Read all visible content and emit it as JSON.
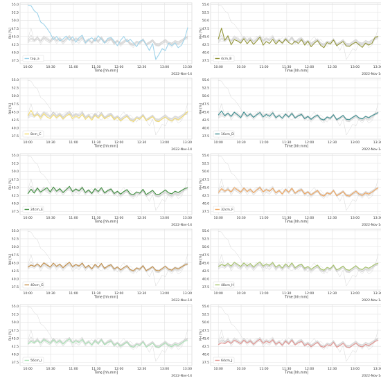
{
  "chart_data": [
    {
      "type": "line",
      "legend": "top_a",
      "color": "#9fd3ea",
      "x_label": "Time [hh:mm]",
      "y_label": "RH [%]",
      "date_label": "2022-Nov-14",
      "ylim": [
        36.5,
        55.5
      ],
      "yticks": [
        "37.5",
        "40.0",
        "42.5",
        "45.0",
        "47.5",
        "50.0",
        "52.5",
        "55.0"
      ],
      "xticks": [
        "10:00",
        "10:30",
        "11:00",
        "11:30",
        "12:00",
        "12:30",
        "13:00",
        "13:30"
      ],
      "x_range_hours": [
        9.83,
        13.6
      ],
      "legend_position": "lower-left",
      "grid": true,
      "series": [
        {
          "name": "top_a",
          "values": [
            54.8,
            54.6,
            53.0,
            52.2,
            49.5,
            48.8,
            47.5,
            46.0,
            44.0,
            45.0,
            43.6,
            44.2,
            45.1,
            43.8,
            44.9,
            43.2,
            44.6,
            45.4,
            43.0,
            44.0,
            44.6,
            43.5,
            45.2,
            44.1,
            42.9,
            44.4,
            44.7,
            43.6,
            42.1,
            43.8,
            45.0,
            43.3,
            44.1,
            43.0,
            41.8,
            43.5,
            44.0,
            42.4,
            40.6,
            42.8,
            37.8,
            39.4,
            41.2,
            40.6,
            42.9,
            42.1,
            43.0,
            41.5,
            42.2,
            44.2,
            47.8
          ]
        }
      ]
    },
    {
      "type": "line",
      "legend": "4cm_B",
      "color": "#93963b",
      "x_label": "Time [hh:mm]",
      "y_label": "RH [%]",
      "date_label": "2022-Nov-14",
      "ylim": [
        36.5,
        55.5
      ],
      "yticks": [
        "37.5",
        "40.0",
        "42.5",
        "45.0",
        "47.5",
        "50.0",
        "52.5",
        "55.0"
      ],
      "xticks": [
        "10:00",
        "10:30",
        "11:00",
        "11:30",
        "12:00",
        "12:30",
        "13:00",
        "13:30"
      ],
      "x_range_hours": [
        9.83,
        13.6
      ],
      "legend_position": "lower-left",
      "grid": true,
      "series": [
        {
          "name": "4cm_B",
          "values": [
            44.2,
            47.6,
            43.8,
            45.2,
            42.4,
            44.0,
            43.6,
            42.9,
            44.3,
            42.7,
            43.9,
            42.5,
            43.6,
            44.8,
            42.3,
            43.4,
            42.8,
            44.1,
            42.6,
            43.8,
            42.9,
            44.2,
            43.1,
            42.5,
            43.6,
            42.8,
            44.0,
            42.3,
            43.5,
            41.8,
            42.9,
            43.7,
            42.2,
            41.5,
            43.1,
            42.6,
            43.9,
            42.1,
            42.8,
            43.4,
            42.0,
            41.9,
            42.7,
            43.2,
            42.4,
            41.6,
            42.9,
            42.3,
            42.8,
            44.8,
            45.0
          ]
        }
      ]
    },
    {
      "type": "line",
      "legend": "8cm_C",
      "color": "#f4dc6e",
      "x_label": "Time [hh:mm]",
      "y_label": "RH [%]",
      "date_label": "2022-Nov-14",
      "ylim": [
        36.5,
        55.5
      ],
      "yticks": [
        "37.5",
        "40.0",
        "42.5",
        "45.0",
        "47.5",
        "50.0",
        "52.5",
        "55.0"
      ],
      "xticks": [
        "10:00",
        "10:30",
        "11:00",
        "11:30",
        "12:00",
        "12:30",
        "13:00",
        "13:30"
      ],
      "x_range_hours": [
        9.83,
        13.6
      ],
      "legend_position": "lower-left",
      "grid": true,
      "series": [
        {
          "name": "8cm_C",
          "values": [
            43.8,
            45.5,
            43.6,
            44.2,
            43.0,
            44.5,
            43.4,
            42.9,
            44.1,
            43.2,
            44.0,
            42.8,
            43.7,
            44.3,
            42.9,
            43.8,
            43.1,
            44.2,
            42.7,
            43.6,
            42.4,
            43.9,
            43.0,
            44.1,
            42.8,
            43.5,
            43.9,
            42.6,
            43.3,
            42.2,
            43.0,
            43.6,
            42.4,
            42.0,
            43.1,
            42.7,
            43.8,
            42.3,
            42.9,
            43.5,
            42.2,
            42.0,
            42.8,
            43.4,
            42.6,
            42.1,
            43.0,
            42.5,
            43.2,
            44.1,
            45.2
          ]
        }
      ]
    },
    {
      "type": "line",
      "legend": "16cm_D",
      "color": "#3d8f91",
      "x_label": "Time [hh:mm]",
      "y_label": "RH [%]",
      "date_label": "2022-Nov-14",
      "ylim": [
        36.5,
        55.5
      ],
      "yticks": [
        "37.5",
        "40.0",
        "42.5",
        "45.0",
        "47.5",
        "50.0",
        "52.5",
        "55.0"
      ],
      "xticks": [
        "10:00",
        "10:30",
        "11:00",
        "11:30",
        "12:00",
        "12:30",
        "13:00",
        "13:30"
      ],
      "x_range_hours": [
        9.83,
        13.6
      ],
      "legend_position": "lower-left",
      "grid": true,
      "series": [
        {
          "name": "16cm_D",
          "values": [
            44.0,
            45.3,
            43.8,
            44.6,
            43.6,
            44.9,
            44.1,
            43.2,
            45.0,
            43.6,
            44.4,
            43.3,
            44.1,
            44.8,
            43.4,
            44.2,
            43.6,
            44.7,
            43.2,
            43.9,
            43.0,
            44.3,
            43.4,
            44.5,
            43.1,
            43.8,
            44.2,
            42.9,
            43.6,
            42.7,
            43.5,
            44.0,
            42.8,
            42.5,
            43.4,
            43.0,
            44.1,
            42.6,
            43.2,
            43.9,
            42.7,
            42.6,
            43.3,
            43.9,
            43.1,
            42.8,
            43.6,
            43.2,
            43.8,
            44.3,
            44.8
          ]
        }
      ]
    },
    {
      "type": "line",
      "legend": "24cm_E",
      "color": "#3f8f3f",
      "x_label": "Time [hh:mm]",
      "y_label": "RH [%]",
      "date_label": "2022-Nov-14",
      "ylim": [
        36.5,
        55.5
      ],
      "yticks": [
        "37.5",
        "40.0",
        "42.5",
        "45.0",
        "47.5",
        "50.0",
        "52.5",
        "55.0"
      ],
      "xticks": [
        "10:00",
        "10:30",
        "11:00",
        "11:30",
        "12:00",
        "12:30",
        "13:00",
        "13:30"
      ],
      "x_range_hours": [
        9.83,
        13.6
      ],
      "legend_position": "lower-left",
      "grid": true,
      "series": [
        {
          "name": "24cm_E",
          "values": [
            43.0,
            44.4,
            43.2,
            44.8,
            43.5,
            44.2,
            44.9,
            43.6,
            45.1,
            43.8,
            44.6,
            43.4,
            44.3,
            45.3,
            43.7,
            44.5,
            43.9,
            45.0,
            43.4,
            44.2,
            43.1,
            44.6,
            43.7,
            44.9,
            43.3,
            44.0,
            44.5,
            43.1,
            43.8,
            42.9,
            43.7,
            44.3,
            43.0,
            42.7,
            43.6,
            43.2,
            44.4,
            42.8,
            43.4,
            44.1,
            42.9,
            42.8,
            43.5,
            44.2,
            43.3,
            43.0,
            43.8,
            43.4,
            44.0,
            44.6,
            44.9
          ]
        }
      ]
    },
    {
      "type": "line",
      "legend": "32cm_F",
      "color": "#f3a65c",
      "x_label": "Time [hh:mm]",
      "y_label": "RH [%]",
      "date_label": "2022-Nov-14",
      "ylim": [
        36.5,
        55.5
      ],
      "yticks": [
        "37.5",
        "40.0",
        "42.5",
        "45.0",
        "47.5",
        "50.0",
        "52.5",
        "55.0"
      ],
      "xticks": [
        "10:00",
        "10:30",
        "11:00",
        "11:30",
        "12:00",
        "12:30",
        "13:00",
        "13:30"
      ],
      "x_range_hours": [
        9.83,
        13.6
      ],
      "legend_position": "lower-left",
      "grid": true,
      "series": [
        {
          "name": "32cm_F",
          "values": [
            43.4,
            44.6,
            43.8,
            44.3,
            43.6,
            44.9,
            44.2,
            43.5,
            44.8,
            43.7,
            44.4,
            43.3,
            44.2,
            45.0,
            43.6,
            44.3,
            43.8,
            44.7,
            43.3,
            44.0,
            42.9,
            44.4,
            43.5,
            44.7,
            43.2,
            43.9,
            44.3,
            43.0,
            43.6,
            42.6,
            43.4,
            44.0,
            42.7,
            42.3,
            43.3,
            42.9,
            44.0,
            42.4,
            43.0,
            43.7,
            42.5,
            42.3,
            43.1,
            43.8,
            42.9,
            42.5,
            43.3,
            42.9,
            43.5,
            44.2,
            44.9
          ]
        }
      ]
    },
    {
      "type": "line",
      "legend": "40cm_G",
      "color": "#c6914a",
      "x_label": "Time [hh:mm]",
      "y_label": "RH [%]",
      "date_label": "2022-Nov-14",
      "ylim": [
        36.5,
        55.5
      ],
      "yticks": [
        "37.5",
        "40.0",
        "42.5",
        "45.0",
        "47.5",
        "50.0",
        "52.5",
        "55.0"
      ],
      "xticks": [
        "10:00",
        "10:30",
        "11:00",
        "11:30",
        "12:00",
        "12:30",
        "13:00",
        "13:30"
      ],
      "x_range_hours": [
        9.83,
        13.6
      ],
      "legend_position": "lower-left",
      "grid": true,
      "series": [
        {
          "name": "40cm_G",
          "values": [
            43.6,
            44.3,
            43.9,
            44.6,
            43.8,
            45.0,
            44.3,
            43.7,
            44.9,
            43.9,
            44.6,
            43.5,
            44.4,
            45.2,
            43.8,
            44.5,
            44.0,
            44.9,
            43.5,
            44.2,
            43.1,
            44.5,
            43.6,
            44.8,
            43.3,
            44.0,
            44.4,
            43.1,
            43.7,
            42.8,
            43.5,
            44.1,
            42.9,
            42.5,
            43.4,
            43.0,
            44.1,
            42.6,
            43.1,
            43.8,
            42.7,
            42.5,
            43.2,
            43.9,
            43.0,
            42.7,
            43.5,
            43.1,
            43.7,
            44.3,
            44.6
          ]
        }
      ]
    },
    {
      "type": "line",
      "legend": "48cm_H",
      "color": "#a6c46a",
      "x_label": "Time [hh:mm]",
      "y_label": "RH [%]",
      "date_label": "2022-Nov-14",
      "ylim": [
        36.5,
        55.5
      ],
      "yticks": [
        "37.5",
        "40.0",
        "42.5",
        "45.0",
        "47.5",
        "50.0",
        "52.5",
        "55.0"
      ],
      "xticks": [
        "10:00",
        "10:30",
        "11:00",
        "11:30",
        "12:00",
        "12:30",
        "13:00",
        "13:30"
      ],
      "x_range_hours": [
        9.83,
        13.6
      ],
      "legend_position": "lower-left",
      "grid": true,
      "series": [
        {
          "name": "48cm_H",
          "values": [
            43.8,
            44.5,
            44.1,
            44.8,
            44.0,
            45.2,
            44.5,
            43.9,
            45.0,
            44.1,
            44.8,
            43.7,
            44.6,
            45.3,
            44.0,
            44.7,
            44.2,
            45.1,
            43.7,
            44.4,
            43.4,
            44.7,
            43.8,
            45.0,
            43.5,
            44.2,
            44.6,
            43.3,
            43.9,
            43.0,
            43.7,
            44.3,
            43.1,
            42.7,
            43.6,
            43.2,
            44.3,
            42.8,
            43.3,
            44.0,
            42.9,
            42.7,
            43.4,
            44.1,
            43.2,
            42.9,
            43.7,
            43.3,
            43.9,
            44.6,
            44.8
          ]
        }
      ]
    },
    {
      "type": "line",
      "legend": "56cm_I",
      "color": "#a8e3b4",
      "x_label": "Time [hh:mm]",
      "y_label": "RH [%]",
      "date_label": "2022-Nov-14",
      "ylim": [
        36.5,
        55.5
      ],
      "yticks": [
        "37.5",
        "40.0",
        "42.5",
        "45.0",
        "47.5",
        "50.0",
        "52.5",
        "55.0"
      ],
      "xticks": [
        "10:00",
        "10:30",
        "11:00",
        "11:30",
        "12:00",
        "12:30",
        "13:00",
        "13:30"
      ],
      "x_range_hours": [
        9.83,
        13.6
      ],
      "legend_position": "lower-left",
      "grid": true,
      "series": [
        {
          "name": "56cm_I",
          "values": [
            43.2,
            44.0,
            43.6,
            44.3,
            43.5,
            44.6,
            44.0,
            43.4,
            44.5,
            43.6,
            44.3,
            43.2,
            44.1,
            44.8,
            43.5,
            44.2,
            43.7,
            44.6,
            43.2,
            43.9,
            42.9,
            44.2,
            43.3,
            44.5,
            43.0,
            43.7,
            44.1,
            42.8,
            43.4,
            42.5,
            43.2,
            43.8,
            42.6,
            42.2,
            43.1,
            42.7,
            43.8,
            42.3,
            42.8,
            43.5,
            42.4,
            42.2,
            42.9,
            43.6,
            42.7,
            42.4,
            43.2,
            42.8,
            43.4,
            44.1,
            44.3
          ]
        }
      ]
    },
    {
      "type": "line",
      "legend": "64cm_J",
      "color": "#e3928f",
      "x_label": "Time [hh:mm]",
      "y_label": "RH [%]",
      "date_label": "2022-Nov-14",
      "ylim": [
        36.5,
        55.5
      ],
      "yticks": [
        "37.5",
        "40.0",
        "42.5",
        "45.0",
        "47.5",
        "50.0",
        "52.5",
        "55.0"
      ],
      "xticks": [
        "10:00",
        "10:30",
        "11:00",
        "11:30",
        "12:00",
        "12:30",
        "13:00",
        "13:30"
      ],
      "x_range_hours": [
        9.83,
        13.6
      ],
      "legend_position": "lower-left",
      "grid": true,
      "series": [
        {
          "name": "64cm_J",
          "values": [
            43.0,
            43.6,
            43.3,
            44.0,
            43.4,
            44.4,
            43.9,
            43.3,
            44.4,
            43.5,
            44.2,
            43.1,
            44.0,
            44.7,
            43.4,
            44.1,
            43.6,
            44.5,
            43.1,
            43.8,
            42.8,
            44.1,
            43.2,
            44.4,
            42.9,
            43.6,
            44.0,
            42.7,
            43.3,
            42.4,
            43.1,
            43.7,
            42.5,
            42.2,
            43.0,
            42.6,
            43.7,
            42.2,
            42.7,
            43.4,
            42.3,
            42.1,
            42.8,
            43.5,
            42.6,
            42.3,
            43.1,
            42.7,
            43.3,
            44.0,
            44.4
          ]
        }
      ]
    }
  ]
}
